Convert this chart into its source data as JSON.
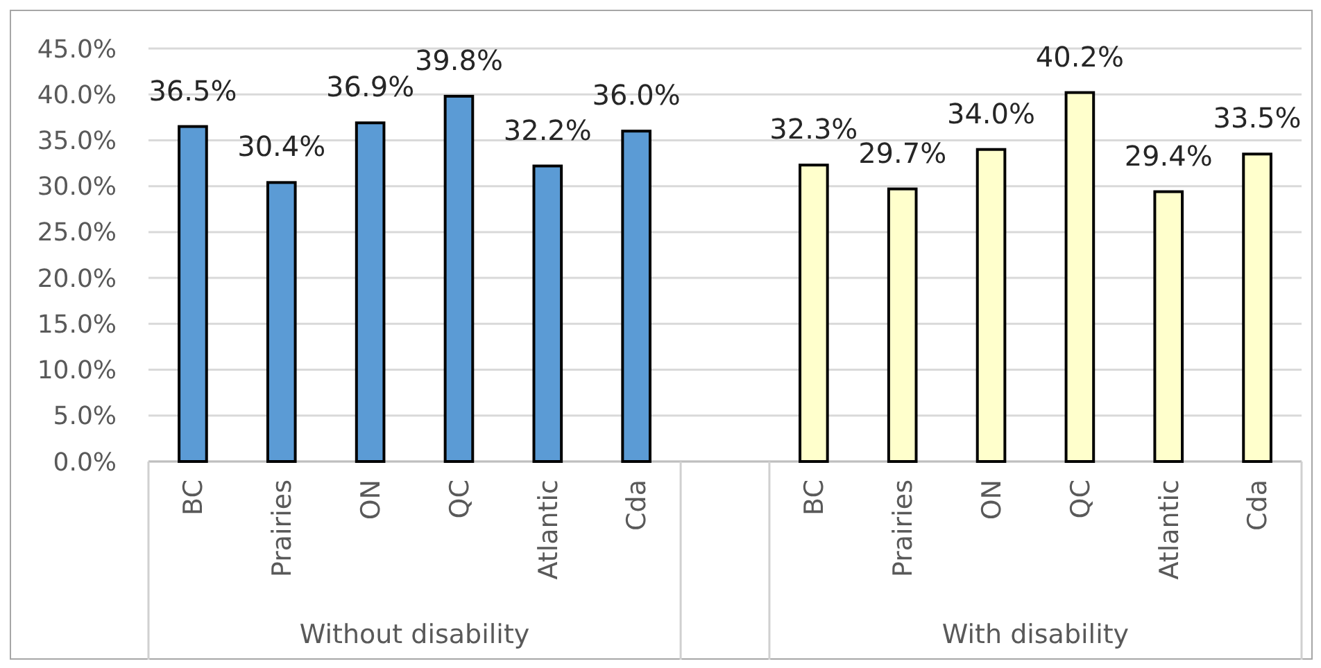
{
  "chart_data": {
    "type": "bar",
    "categories": [
      "BC",
      "Prairies",
      "ON",
      "QC",
      "Atlantic",
      "Cda",
      null,
      "BC",
      "Prairies",
      "ON",
      "QC",
      "Atlantic",
      "Cda"
    ],
    "series": [
      {
        "color": "#5b9bd5",
        "values": [
          36.5,
          30.4,
          36.9,
          39.8,
          32.2,
          36.0,
          null,
          null,
          null,
          null,
          null,
          null,
          null
        ],
        "value_labels": [
          "36.5%",
          "30.4%",
          "36.9%",
          "39.8%",
          "32.2%",
          "36.0%",
          null,
          null,
          null,
          null,
          null,
          null,
          null
        ]
      },
      {
        "color": "#ffffcc",
        "values": [
          null,
          null,
          null,
          null,
          null,
          null,
          null,
          32.3,
          29.7,
          34.0,
          40.2,
          29.4,
          33.5
        ],
        "value_labels": [
          null,
          null,
          null,
          null,
          null,
          null,
          null,
          "32.3%",
          "29.7%",
          "34.0%",
          "40.2%",
          "29.4%",
          "33.5%"
        ]
      }
    ],
    "annotations": [
      "Without disability",
      "With disability"
    ],
    "ylim": [
      0,
      45
    ],
    "yticks": [
      {
        "value": 0,
        "label": "0.0%"
      },
      {
        "value": 5,
        "label": "5.0%"
      },
      {
        "value": 10,
        "label": "10.0%"
      },
      {
        "value": 15,
        "label": "15.0%"
      },
      {
        "value": 20,
        "label": "20.0%"
      },
      {
        "value": 25,
        "label": "25.0%"
      },
      {
        "value": 30,
        "label": "30.0%"
      },
      {
        "value": 35,
        "label": "35.0%"
      },
      {
        "value": 40,
        "label": "40.0%"
      },
      {
        "value": 45,
        "label": "45.0%"
      }
    ],
    "grid": "y"
  }
}
